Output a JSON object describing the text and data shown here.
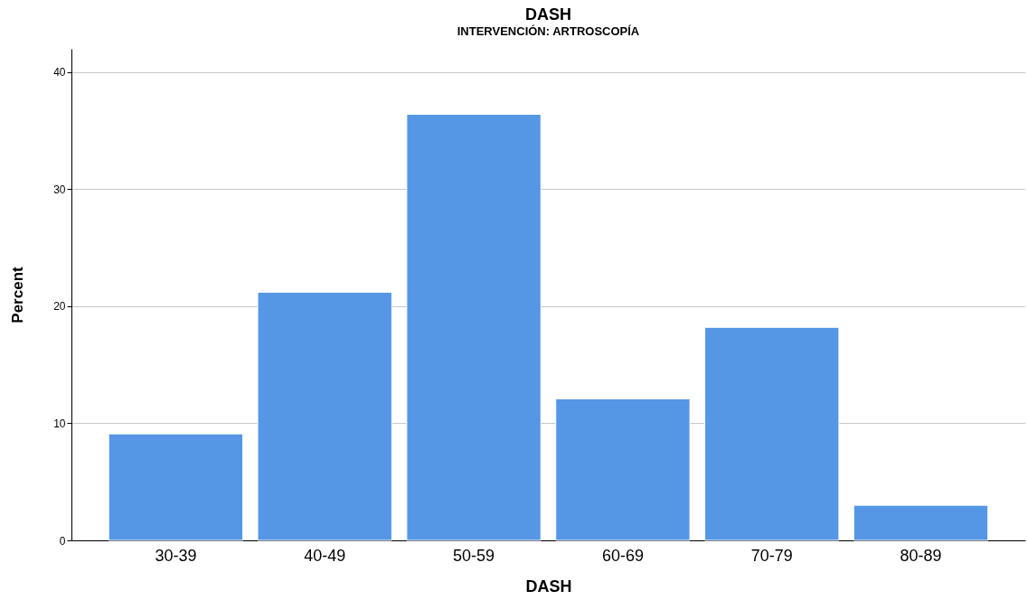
{
  "chart_data": {
    "type": "bar",
    "title": "DASH",
    "subtitle": "INTERVENCIÓN: ARTROSCOPÍA",
    "xlabel": "DASH",
    "ylabel": "Percent",
    "categories": [
      "30-39",
      "40-49",
      "50-59",
      "60-69",
      "70-79",
      "80-89"
    ],
    "values": [
      9.1,
      21.2,
      36.4,
      12.1,
      18.2,
      3.0
    ],
    "color": "#5596e5",
    "ylim": [
      0,
      42
    ],
    "yticks": [
      0,
      10,
      20,
      30,
      40
    ],
    "grid": "y"
  }
}
